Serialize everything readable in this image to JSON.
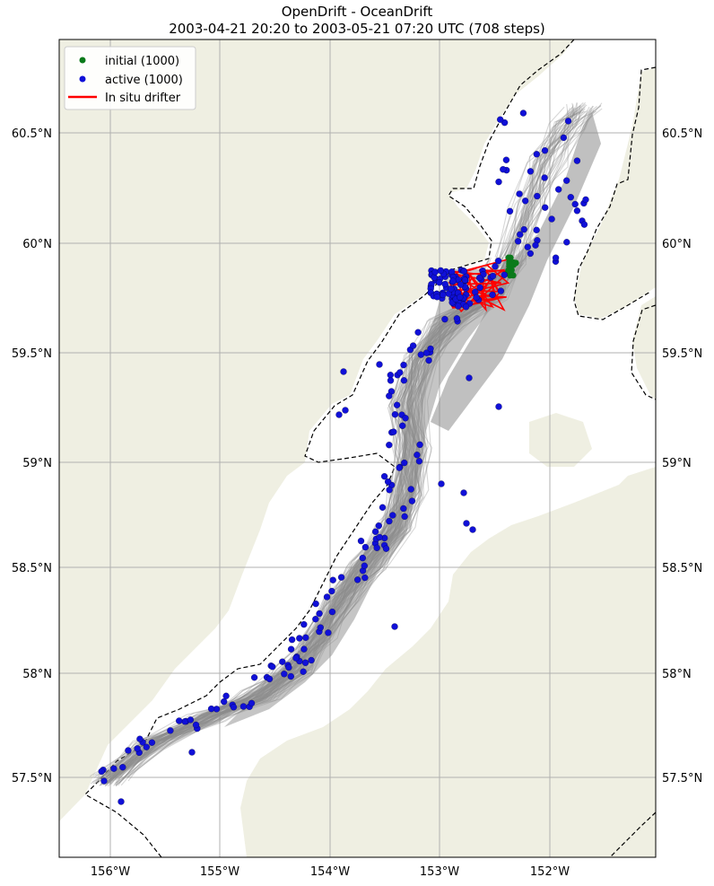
{
  "title": {
    "line1": "OpenDrift - OceanDrift",
    "line2": "2003-04-21 20:20 to 2003-05-21 07:20 UTC (708 steps)"
  },
  "colors": {
    "land": "#efefe2",
    "ocean": "#ffffff",
    "trajectory": "#8c8c8c",
    "initial": "#0a7a1a",
    "active": "#1010d8",
    "drifter": "#ff0000",
    "grid": "#b0b0b0",
    "boundary": "#000000"
  },
  "axes": {
    "x_ticks": [
      "156°W",
      "155°W",
      "154°W",
      "153°W",
      "152°W"
    ],
    "y_ticks": [
      "60.5°N",
      "60°N",
      "59.5°N",
      "59°N",
      "58.5°N",
      "58°N",
      "57.5°N"
    ]
  },
  "legend": {
    "items": [
      {
        "label": "initial (1000)",
        "kind": "marker",
        "color_key": "initial"
      },
      {
        "label": "active (1000)",
        "kind": "marker",
        "color_key": "active"
      },
      {
        "label": "In situ drifter",
        "kind": "line",
        "color_key": "drifter"
      }
    ]
  },
  "chart_data": {
    "type": "scatter",
    "map_projection": "geographic",
    "x_unit": "longitude (°W)",
    "y_unit": "latitude (°N)",
    "xlim": [
      -156.45,
      -151.7
    ],
    "ylim": [
      57.1,
      60.9
    ],
    "particle_count": 1000,
    "steps": 708,
    "series": [
      {
        "name": "initial (1000)",
        "points": [
          [
            -152.3,
            59.93
          ]
        ]
      },
      {
        "name": "active (1000)",
        "points": [
          [
            -153.2,
            59.85
          ],
          [
            -153.0,
            59.7
          ],
          [
            -152.95,
            59.55
          ],
          [
            -153.1,
            59.4
          ],
          [
            -153.2,
            59.15
          ],
          [
            -153.3,
            58.95
          ],
          [
            -153.35,
            58.7
          ],
          [
            -153.5,
            58.55
          ],
          [
            -153.8,
            58.45
          ],
          [
            -154.0,
            58.2
          ],
          [
            -154.3,
            58.05
          ],
          [
            -154.6,
            57.95
          ],
          [
            -155.1,
            57.8
          ],
          [
            -155.6,
            57.6
          ],
          [
            -156.0,
            57.45
          ],
          [
            -152.1,
            60.3
          ],
          [
            -152.0,
            60.55
          ],
          [
            -152.35,
            60.2
          ],
          [
            -152.5,
            59.8
          ],
          [
            -153.9,
            59.2
          ],
          [
            -152.7,
            58.75
          ],
          [
            -152.8,
            58.65
          ],
          [
            -152.65,
            59.4
          ],
          [
            -153.6,
            59.45
          ]
        ]
      },
      {
        "name": "In situ drifter",
        "points": [
          [
            -152.3,
            59.93
          ],
          [
            -152.5,
            59.85
          ],
          [
            -152.7,
            59.8
          ],
          [
            -152.9,
            59.72
          ],
          [
            -152.6,
            59.9
          ],
          [
            -152.8,
            59.75
          ]
        ]
      }
    ]
  }
}
